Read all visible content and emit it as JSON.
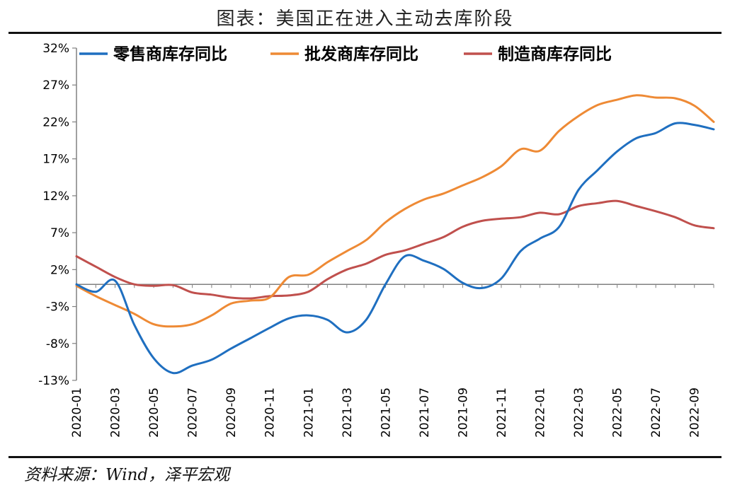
{
  "title": "图表：美国正在进入主动去库阶段",
  "source": "资料来源：Wind，泽平宏观",
  "chart_data": {
    "type": "line",
    "ylim": [
      -13,
      32
    ],
    "yticks": [
      32,
      27,
      22,
      17,
      12,
      7,
      2,
      -3,
      -8,
      -13
    ],
    "ytick_labels": [
      "32%",
      "27%",
      "22%",
      "17%",
      "12%",
      "7%",
      "2%",
      "-3%",
      "-8%",
      "-13%"
    ],
    "x": [
      "2020-01",
      "2020-02",
      "2020-03",
      "2020-04",
      "2020-05",
      "2020-06",
      "2020-07",
      "2020-08",
      "2020-09",
      "2020-10",
      "2020-11",
      "2020-12",
      "2021-01",
      "2021-02",
      "2021-03",
      "2021-04",
      "2021-05",
      "2021-06",
      "2021-07",
      "2021-08",
      "2021-09",
      "2021-10",
      "2021-11",
      "2021-12",
      "2022-01",
      "2022-02",
      "2022-03",
      "2022-04",
      "2022-05",
      "2022-06",
      "2022-07",
      "2022-08",
      "2022-09",
      "2022-10"
    ],
    "xtick_labels": [
      "2020-01",
      "2020-03",
      "2020-05",
      "2020-07",
      "2020-09",
      "2020-11",
      "2021-01",
      "2021-03",
      "2021-05",
      "2021-07",
      "2021-09",
      "2021-11",
      "2022-01",
      "2022-03",
      "2022-05",
      "2022-07",
      "2022-09"
    ],
    "legend_position": "top",
    "series": [
      {
        "name": "零售商库存同比",
        "color": "#1f6fc0",
        "values": [
          0.0,
          -1.0,
          0.5,
          -5.5,
          -10.0,
          -12.0,
          -11.0,
          -10.2,
          -8.7,
          -7.3,
          -5.9,
          -4.6,
          -4.2,
          -4.8,
          -6.5,
          -4.8,
          0.0,
          3.8,
          3.2,
          2.1,
          0.2,
          -0.5,
          0.8,
          4.5,
          6.2,
          7.8,
          12.8,
          15.5,
          18.0,
          19.8,
          20.5,
          21.8,
          21.6,
          21.0
        ]
      },
      {
        "name": "批发商库存同比",
        "color": "#ee8a35",
        "values": [
          -0.2,
          -1.6,
          -2.8,
          -4.0,
          -5.4,
          -5.7,
          -5.4,
          -4.2,
          -2.6,
          -2.2,
          -1.8,
          1.0,
          1.3,
          3.0,
          4.5,
          6.0,
          8.4,
          10.2,
          11.5,
          12.3,
          13.4,
          14.5,
          16.0,
          18.3,
          18.1,
          20.8,
          22.8,
          24.3,
          25.0,
          25.6,
          25.3,
          25.2,
          24.2,
          22.0
        ]
      },
      {
        "name": "制造商库存同比",
        "color": "#c0504d",
        "values": [
          3.8,
          2.4,
          1.0,
          0.0,
          -0.2,
          -0.1,
          -1.1,
          -1.4,
          -1.8,
          -1.9,
          -1.6,
          -1.5,
          -1.0,
          0.7,
          2.0,
          2.8,
          4.0,
          4.6,
          5.5,
          6.4,
          7.8,
          8.6,
          8.9,
          9.1,
          9.7,
          9.5,
          10.6,
          11.0,
          11.3,
          10.6,
          9.9,
          9.1,
          8.0,
          7.6
        ]
      }
    ]
  }
}
